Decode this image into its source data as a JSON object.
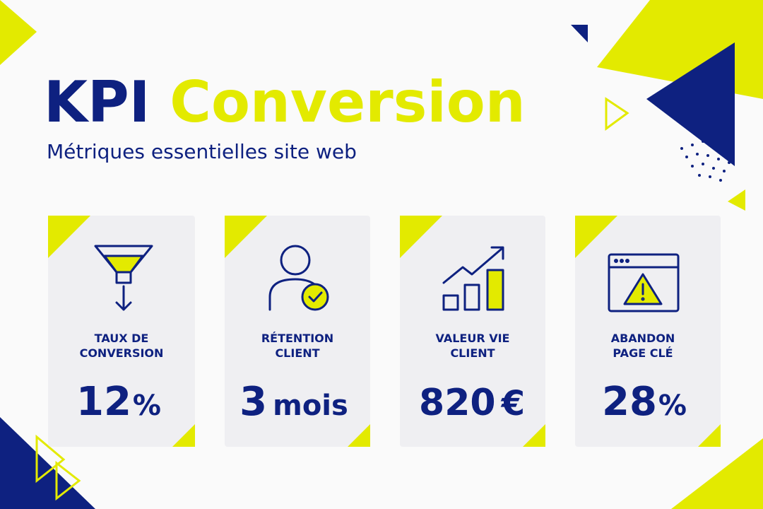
{
  "header": {
    "title_part1": "KPI",
    "title_part2": "Conversion",
    "subtitle": "Métriques essentielles site web"
  },
  "cards": [
    {
      "label_lines": [
        "TAUX DE",
        "CONVERSION"
      ],
      "value": "12",
      "unit": "%"
    },
    {
      "label_lines": [
        "RÉTENTION",
        "CLIENT"
      ],
      "value": "3",
      "unit": "mois"
    },
    {
      "label_lines": [
        "VALEUR VIE",
        "CLIENT"
      ],
      "value": "820",
      "unit": "€"
    },
    {
      "label_lines": [
        "ABANDON",
        "PAGE CLÉ"
      ],
      "value": "28",
      "unit": "%"
    }
  ]
}
